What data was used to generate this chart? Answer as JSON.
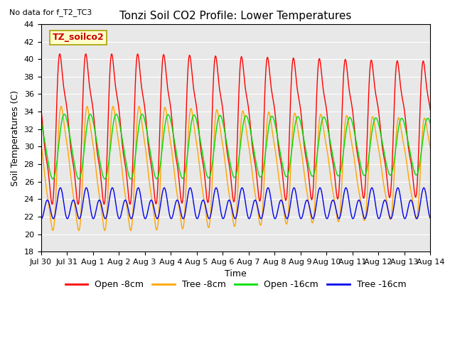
{
  "title": "Tonzi Soil CO2 Profile: Lower Temperatures",
  "xlabel": "Time",
  "ylabel": "Soil Temperatures (C)",
  "ylim": [
    18,
    44
  ],
  "yticks": [
    18,
    20,
    22,
    24,
    26,
    28,
    30,
    32,
    34,
    36,
    38,
    40,
    42,
    44
  ],
  "bg_color": "#e8e8e8",
  "fig_color": "#ffffff",
  "no_data_text": "No data for f_T2_TC3",
  "annotation_box": "TZ_soilco2",
  "colors": {
    "open8": "#ff0000",
    "tree8": "#ffa500",
    "open16": "#00dd00",
    "tree16": "#0000ee"
  },
  "legend_labels": [
    "Open -8cm",
    "Tree -8cm",
    "Open -16cm",
    "Tree -16cm"
  ],
  "num_days": 15,
  "xtick_labels": [
    "Jul 30",
    "Jul 31",
    "Aug 1",
    "Aug 2",
    "Aug 3",
    "Aug 4",
    "Aug 5",
    "Aug 6",
    "Aug 7",
    "Aug 8",
    "Aug 9",
    "Aug 10",
    "Aug 11",
    "Aug 12",
    "Aug 13",
    "Aug 14"
  ]
}
